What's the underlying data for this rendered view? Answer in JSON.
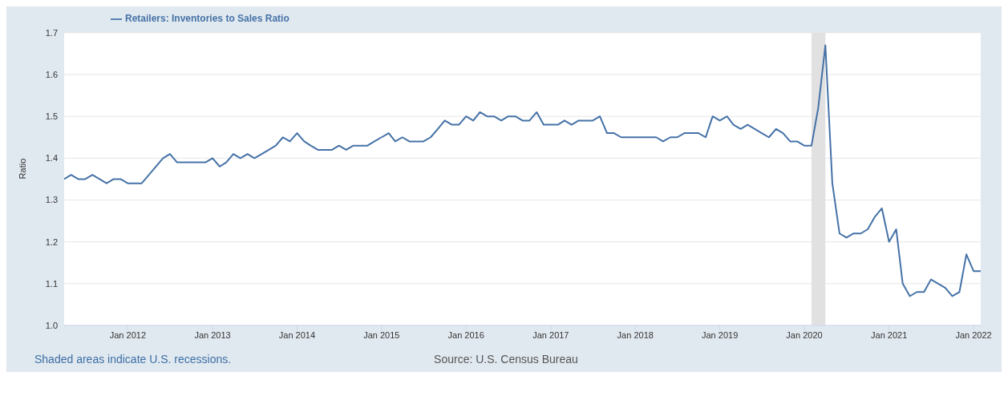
{
  "chart_data": {
    "type": "line",
    "ylabel": "Ratio",
    "x": [
      "2011-04",
      "2011-05",
      "2011-06",
      "2011-07",
      "2011-08",
      "2011-09",
      "2011-10",
      "2011-11",
      "2011-12",
      "2012-01",
      "2012-02",
      "2012-03",
      "2012-04",
      "2012-05",
      "2012-06",
      "2012-07",
      "2012-08",
      "2012-09",
      "2012-10",
      "2012-11",
      "2012-12",
      "2013-01",
      "2013-02",
      "2013-03",
      "2013-04",
      "2013-05",
      "2013-06",
      "2013-07",
      "2013-08",
      "2013-09",
      "2013-10",
      "2013-11",
      "2013-12",
      "2014-01",
      "2014-02",
      "2014-03",
      "2014-04",
      "2014-05",
      "2014-06",
      "2014-07",
      "2014-08",
      "2014-09",
      "2014-10",
      "2014-11",
      "2014-12",
      "2015-01",
      "2015-02",
      "2015-03",
      "2015-04",
      "2015-05",
      "2015-06",
      "2015-07",
      "2015-08",
      "2015-09",
      "2015-10",
      "2015-11",
      "2015-12",
      "2016-01",
      "2016-02",
      "2016-03",
      "2016-04",
      "2016-05",
      "2016-06",
      "2016-07",
      "2016-08",
      "2016-09",
      "2016-10",
      "2016-11",
      "2016-12",
      "2017-01",
      "2017-02",
      "2017-03",
      "2017-04",
      "2017-05",
      "2017-06",
      "2017-07",
      "2017-08",
      "2017-09",
      "2017-10",
      "2017-11",
      "2017-12",
      "2018-01",
      "2018-02",
      "2018-03",
      "2018-04",
      "2018-05",
      "2018-06",
      "2018-07",
      "2018-08",
      "2018-09",
      "2018-10",
      "2018-11",
      "2018-12",
      "2019-01",
      "2019-02",
      "2019-03",
      "2019-04",
      "2019-05",
      "2019-06",
      "2019-07",
      "2019-08",
      "2019-09",
      "2019-10",
      "2019-11",
      "2019-12",
      "2020-01",
      "2020-02",
      "2020-03",
      "2020-04",
      "2020-05",
      "2020-06",
      "2020-07",
      "2020-08",
      "2020-09",
      "2020-10",
      "2020-11",
      "2020-12",
      "2021-01",
      "2021-02",
      "2021-03",
      "2021-04",
      "2021-05",
      "2021-06",
      "2021-07",
      "2021-08",
      "2021-09",
      "2021-10",
      "2021-11",
      "2021-12",
      "2022-01",
      "2022-02"
    ],
    "series": [
      {
        "name": "Retailers: Inventories to Sales Ratio",
        "color": "#4572a7",
        "values": [
          1.35,
          1.36,
          1.35,
          1.35,
          1.36,
          1.35,
          1.34,
          1.35,
          1.35,
          1.34,
          1.34,
          1.34,
          1.36,
          1.38,
          1.4,
          1.41,
          1.39,
          1.39,
          1.39,
          1.39,
          1.39,
          1.4,
          1.38,
          1.39,
          1.41,
          1.4,
          1.41,
          1.4,
          1.41,
          1.42,
          1.43,
          1.45,
          1.44,
          1.46,
          1.44,
          1.43,
          1.42,
          1.42,
          1.42,
          1.43,
          1.42,
          1.43,
          1.43,
          1.43,
          1.44,
          1.45,
          1.46,
          1.44,
          1.45,
          1.44,
          1.44,
          1.44,
          1.45,
          1.47,
          1.49,
          1.48,
          1.48,
          1.5,
          1.49,
          1.51,
          1.5,
          1.5,
          1.49,
          1.5,
          1.5,
          1.49,
          1.49,
          1.51,
          1.48,
          1.48,
          1.48,
          1.49,
          1.48,
          1.49,
          1.49,
          1.49,
          1.5,
          1.46,
          1.46,
          1.45,
          1.45,
          1.45,
          1.45,
          1.45,
          1.45,
          1.44,
          1.45,
          1.45,
          1.46,
          1.46,
          1.46,
          1.45,
          1.5,
          1.49,
          1.5,
          1.48,
          1.47,
          1.48,
          1.47,
          1.46,
          1.45,
          1.47,
          1.46,
          1.44,
          1.44,
          1.43,
          1.43,
          1.52,
          1.67,
          1.34,
          1.22,
          1.21,
          1.22,
          1.22,
          1.23,
          1.26,
          1.28,
          1.2,
          1.23,
          1.1,
          1.07,
          1.08,
          1.08,
          1.11,
          1.1,
          1.09,
          1.07,
          1.08,
          1.17,
          1.13,
          1.13
        ]
      }
    ],
    "xlim": [
      "2011-04",
      "2022-02"
    ],
    "xticks": [
      {
        "value": "2012-01",
        "label": "Jan 2012"
      },
      {
        "value": "2013-01",
        "label": "Jan 2013"
      },
      {
        "value": "2014-01",
        "label": "Jan 2014"
      },
      {
        "value": "2015-01",
        "label": "Jan 2015"
      },
      {
        "value": "2016-01",
        "label": "Jan 2016"
      },
      {
        "value": "2017-01",
        "label": "Jan 2017"
      },
      {
        "value": "2018-01",
        "label": "Jan 2018"
      },
      {
        "value": "2019-01",
        "label": "Jan 2019"
      },
      {
        "value": "2020-01",
        "label": "Jan 2020"
      },
      {
        "value": "2021-01",
        "label": "Jan 2021"
      },
      {
        "value": "2022-01",
        "label": "Jan 2022"
      }
    ],
    "ylim": [
      1.0,
      1.7
    ],
    "yticks": [
      {
        "value": 1.0,
        "label": "1.0"
      },
      {
        "value": 1.1,
        "label": "1.1"
      },
      {
        "value": 1.2,
        "label": "1.2"
      },
      {
        "value": 1.3,
        "label": "1.3"
      },
      {
        "value": 1.4,
        "label": "1.4"
      },
      {
        "value": 1.5,
        "label": "1.5"
      },
      {
        "value": 1.6,
        "label": "1.6"
      },
      {
        "value": 1.7,
        "label": "1.7"
      }
    ],
    "bands": [
      {
        "axis": "x",
        "from": "2020-02",
        "to": "2020-04",
        "color": "#e1e1e1"
      }
    ],
    "grid": "y",
    "legend": "top left",
    "marker": "none",
    "line_style": "solid",
    "annotations": [
      "Shaded areas indicate U.S. recessions.",
      "Source: U.S. Census Bureau"
    ]
  }
}
